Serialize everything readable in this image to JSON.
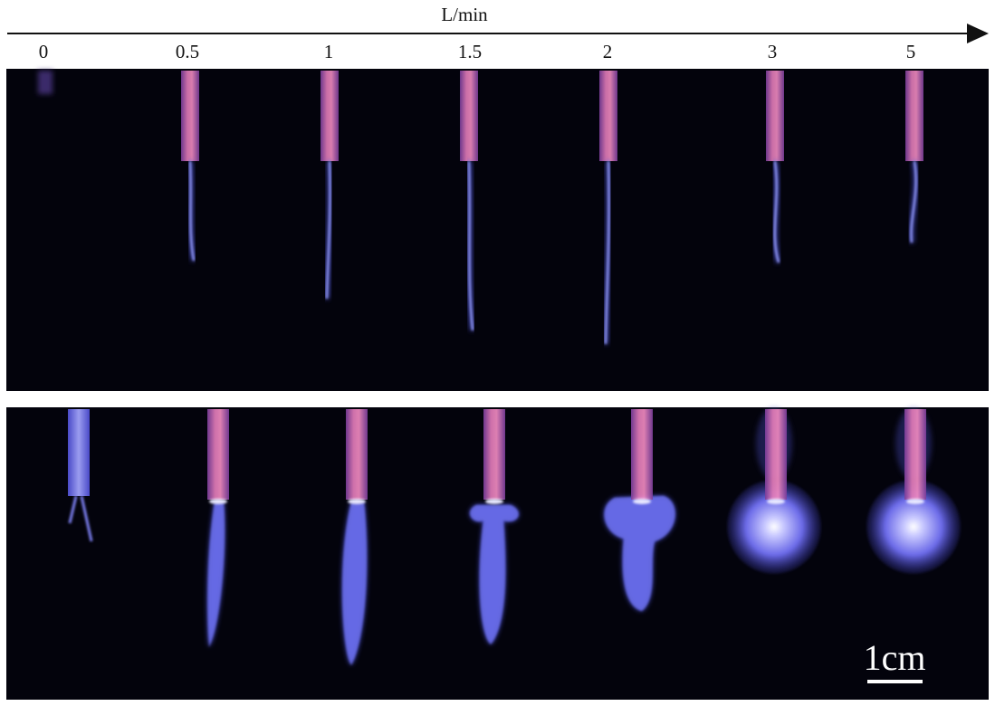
{
  "axis_label": "L/min",
  "flow_rates": [
    "0",
    "0.5",
    "1",
    "1.5",
    "2",
    "3",
    "5"
  ],
  "scale_bar": {
    "label": "1cm"
  }
}
